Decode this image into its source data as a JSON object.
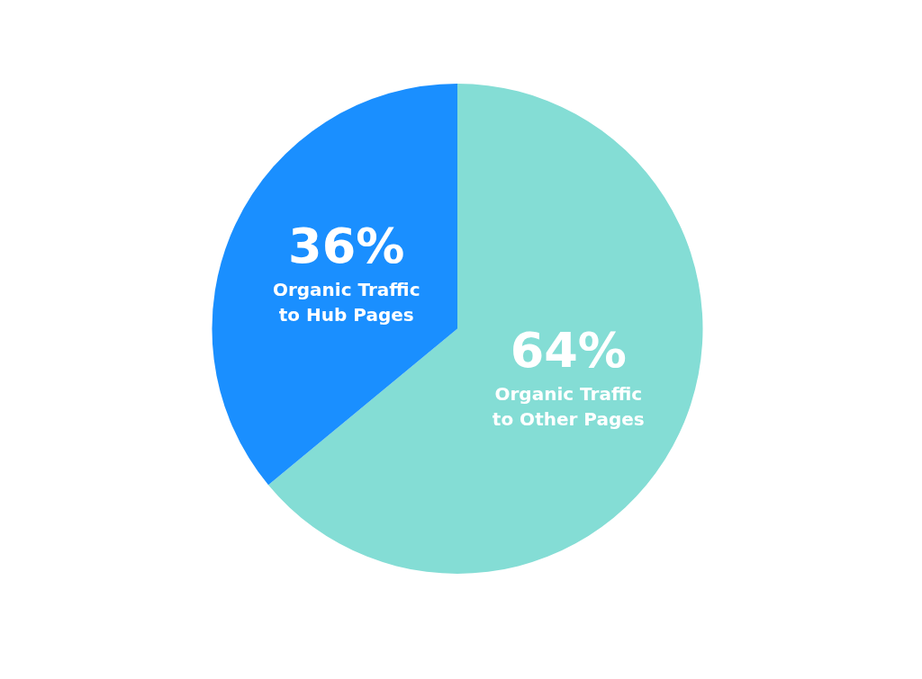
{
  "chart_data": {
    "type": "pie",
    "categories": [
      "Organic Traffic to Other Pages",
      "Organic Traffic to Hub Pages"
    ],
    "values": [
      64,
      36
    ],
    "colors": [
      "#84ddd5",
      "#1a8fff"
    ],
    "value_labels": [
      "64%",
      "36%"
    ],
    "legend": false
  }
}
